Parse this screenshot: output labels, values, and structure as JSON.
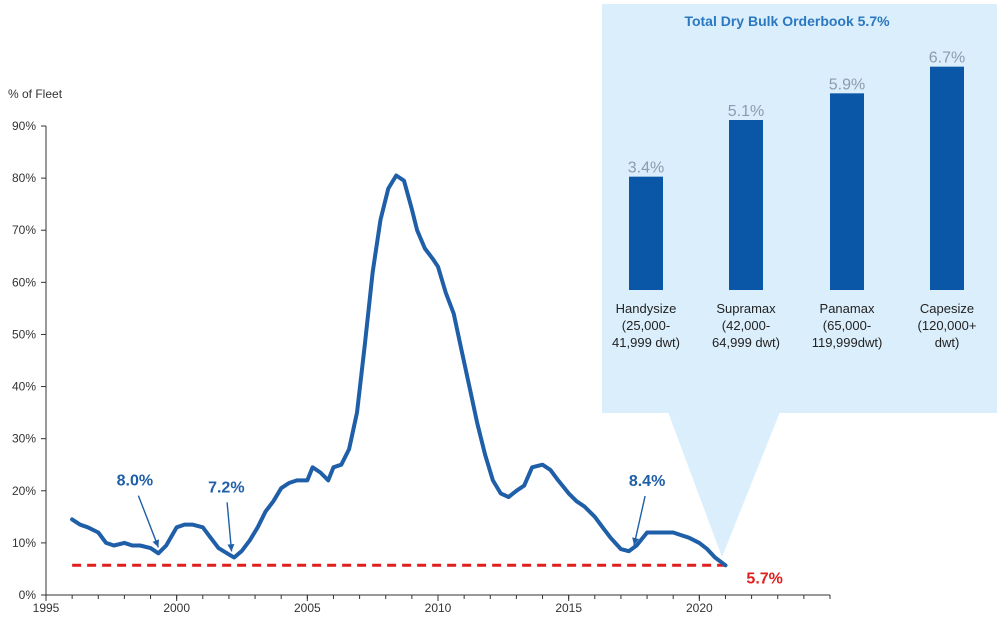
{
  "main_chart": {
    "type": "line",
    "ylabel": "% of Fleet",
    "ylim": [
      0,
      90
    ],
    "xlim": [
      1995,
      2025
    ],
    "x_ticks": [
      1995,
      2000,
      2005,
      2010,
      2015,
      2020
    ],
    "y_ticks": [
      0,
      10,
      20,
      30,
      40,
      50,
      60,
      70,
      80,
      90
    ],
    "y_tick_labels": [
      "0%",
      "10%",
      "20%",
      "30%",
      "40%",
      "50%",
      "60%",
      "70%",
      "80%",
      "90%"
    ],
    "line_color": "#1f5fa8",
    "reference_line": {
      "value": 5.7,
      "label": "5.7%",
      "color": "#e01e1e",
      "style": "dashed"
    },
    "annotations": [
      {
        "label": "8.0%",
        "x": 1999.3,
        "y": 8.0
      },
      {
        "label": "7.2%",
        "x": 2002.1,
        "y": 7.2
      },
      {
        "label": "8.4%",
        "x": 2017.5,
        "y": 8.4
      }
    ],
    "series": [
      {
        "x": [
          1996.0,
          1996.3,
          1996.6,
          1997.0,
          1997.3,
          1997.6,
          1998.0,
          1998.3,
          1998.6,
          1999.0,
          1999.3,
          1999.6,
          2000.0,
          2000.3,
          2000.6,
          2001.0,
          2001.3,
          2001.6,
          2002.0,
          2002.2,
          2002.5,
          2002.8,
          2003.1,
          2003.4,
          2003.7,
          2004.0,
          2004.3,
          2004.6,
          2005.0,
          2005.2,
          2005.5,
          2005.8,
          2006.0,
          2006.3,
          2006.6,
          2006.9,
          2007.2,
          2007.5,
          2007.8,
          2008.1,
          2008.4,
          2008.7,
          2009.0,
          2009.2,
          2009.5,
          2009.8,
          2010.0,
          2010.3,
          2010.6,
          2010.9,
          2011.2,
          2011.5,
          2011.8,
          2012.1,
          2012.4,
          2012.7,
          2013.0,
          2013.3,
          2013.6,
          2014.0,
          2014.3,
          2014.6,
          2015.0,
          2015.3,
          2015.6,
          2016.0,
          2016.3,
          2016.6,
          2017.0,
          2017.3,
          2017.6,
          2018.0,
          2018.3,
          2018.6,
          2019.0,
          2019.3,
          2019.6,
          2020.0,
          2020.3,
          2020.6,
          2021.0
        ],
        "y": [
          14.5,
          13.5,
          13.0,
          12.0,
          10.0,
          9.5,
          10.0,
          9.5,
          9.5,
          9.0,
          8.0,
          9.5,
          13.0,
          13.5,
          13.5,
          13.0,
          11.0,
          9.0,
          7.8,
          7.2,
          8.5,
          10.5,
          13.0,
          16.0,
          18.0,
          20.5,
          21.5,
          22.0,
          22.0,
          24.5,
          23.5,
          22.0,
          24.5,
          25.0,
          28.0,
          35.0,
          48.0,
          62.0,
          72.0,
          78.0,
          80.5,
          79.5,
          74.0,
          70.0,
          66.5,
          64.5,
          63.0,
          58.0,
          54.0,
          47.0,
          40.0,
          33.0,
          27.0,
          22.0,
          19.5,
          18.8,
          20.0,
          21.0,
          24.5,
          25.0,
          24.0,
          22.0,
          19.5,
          18.0,
          17.0,
          15.0,
          13.0,
          11.0,
          8.8,
          8.4,
          9.5,
          12.0,
          12.0,
          12.0,
          12.0,
          11.5,
          11.0,
          10.0,
          8.8,
          7.2,
          5.7
        ]
      }
    ]
  },
  "inset_chart": {
    "type": "bar",
    "title": "Total Dry Bulk Orderbook 5.7%",
    "ylim": [
      0,
      7.5
    ],
    "bar_color": "#0a57a8",
    "panel_color": "#dbeefb",
    "categories": [
      {
        "lines": [
          "Handysize",
          "(25,000-",
          "41,999 dwt)"
        ]
      },
      {
        "lines": [
          "Supramax",
          "(42,000-",
          "64,999 dwt)"
        ]
      },
      {
        "lines": [
          "Panamax",
          "(65,000-",
          "119,999dwt)"
        ]
      },
      {
        "lines": [
          "Capesize",
          "(120,000+",
          "dwt)"
        ]
      }
    ],
    "values": [
      3.4,
      5.1,
      5.9,
      6.7
    ],
    "value_labels": [
      "3.4%",
      "5.1%",
      "5.9%",
      "6.7%"
    ]
  }
}
